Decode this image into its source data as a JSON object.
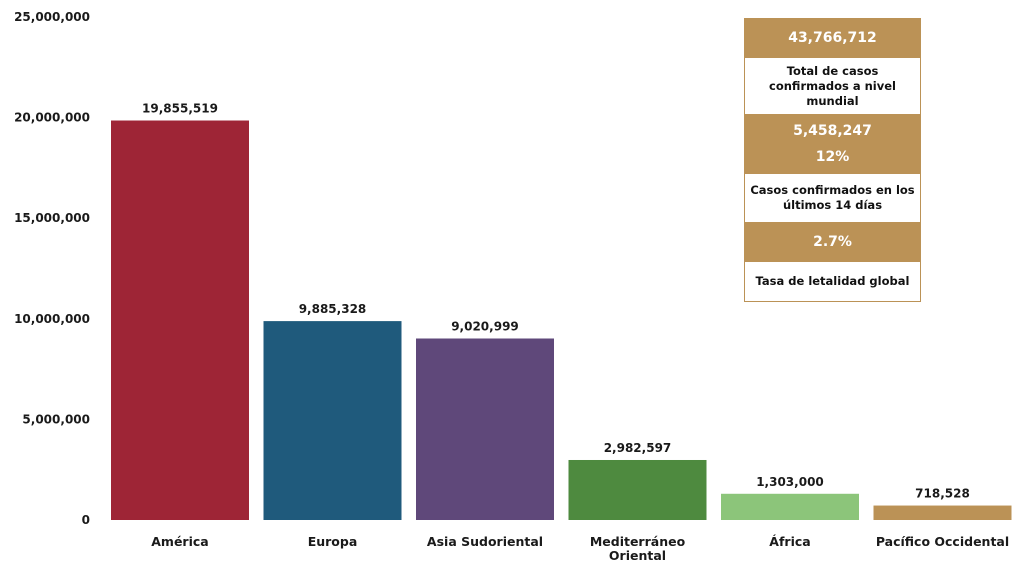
{
  "chart_data": {
    "type": "bar",
    "categories": [
      "América",
      "Europa",
      "Asia Sudoriental",
      "Mediterráneo Oriental",
      "África",
      "Pacífico Occidental"
    ],
    "values": [
      19855519,
      9885328,
      9020999,
      2982597,
      1303000,
      718528
    ],
    "data_labels": [
      "19,855,519",
      "9,885,328",
      "9,020,999",
      "2,982,597",
      "1,303,000",
      "718,528"
    ],
    "colors": [
      "#9e2536",
      "#1f5a7c",
      "#5f487a",
      "#4e8a3f",
      "#8cc57a",
      "#bb9256"
    ],
    "ylim": [
      0,
      25000000
    ],
    "yticks": [
      0,
      5000000,
      10000000,
      15000000,
      20000000,
      25000000
    ],
    "ytick_labels": [
      "0",
      "5,000,000",
      "10,000,000",
      "15,000,000",
      "20,000,000",
      "25,000,000"
    ],
    "title": "",
    "xlabel": "",
    "ylabel": "",
    "grid": false,
    "legend": false
  },
  "summary": {
    "total_value": "43,766,712",
    "total_label": "Total de casos confirmados a nivel mundial",
    "recent_value": "5,458,247",
    "recent_percent": "12%",
    "recent_label": "Casos confirmados en los últimos 14 días",
    "lethality_value": "2.7%",
    "lethality_label": "Tasa de letalidad global",
    "accent_color": "#bb9256"
  }
}
